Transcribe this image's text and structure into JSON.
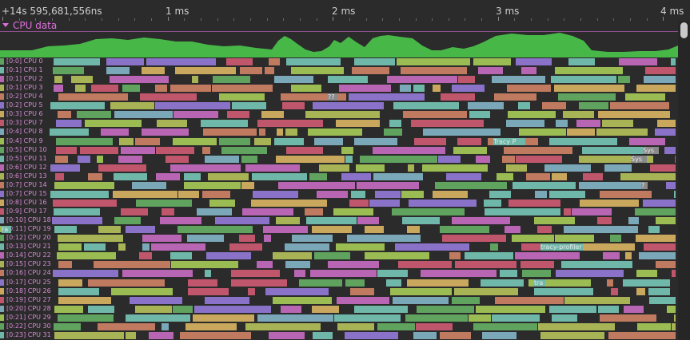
{
  "timeline": {
    "start_label": "+14s 595,681,556ns",
    "ticks": [
      "1 ms",
      "2 ms",
      "3 ms",
      "4 ms"
    ]
  },
  "section": {
    "title": "CPU data",
    "expanded": true
  },
  "colors": {
    "background": "#2b2b2b",
    "section_title": "#e06edf",
    "usage_fill": "#47b747",
    "core_label": "#d58ad5"
  },
  "cores": [
    "[0:0] CPU 0",
    "[0:1] CPU 1",
    "[0:1] CPU 2",
    "[0:1] CPU 3",
    "[0:2] CPU 4",
    "[0:2] CPU 5",
    "[0:3] CPU 6",
    "[0:3] CPU 7",
    "[0:4] CPU 8",
    "[0:4] CPU 9",
    "[0:5] CPU 10",
    "[0:5] CPU 11",
    "[0:6] CPU 12",
    "[0:6] CPU 13",
    "[0:7] CPU 14",
    "[0:7] CPU 15",
    "[0:8] CPU 16",
    "[0:9] CPU 17",
    "[0:10] CPU 18",
    "[0:11] CPU 19",
    "[0:12] CPU 20",
    "[0:13] CPU 21",
    "[0:14] CPU 22",
    "[0:15] CPU 23",
    "[0:16] CPU 24",
    "[0:17] CPU 25",
    "[0:18] CPU 26",
    "[0:19] CPU 27",
    "[0:20] CPU 28",
    "[0:21] CPU 29",
    "[0:22] CPU 30",
    "[0:23] CPU 31"
  ],
  "thread_labels": {
    "tracy_p": "Tracy P",
    "sys_a": "Sys",
    "sys_b": "Sys",
    "tracy_profiler": "tracy-profiler",
    "ra": "ra",
    "tra": "tra",
    "q1": "??",
    "q2": "?"
  },
  "scrollbar": {
    "visible": true
  }
}
